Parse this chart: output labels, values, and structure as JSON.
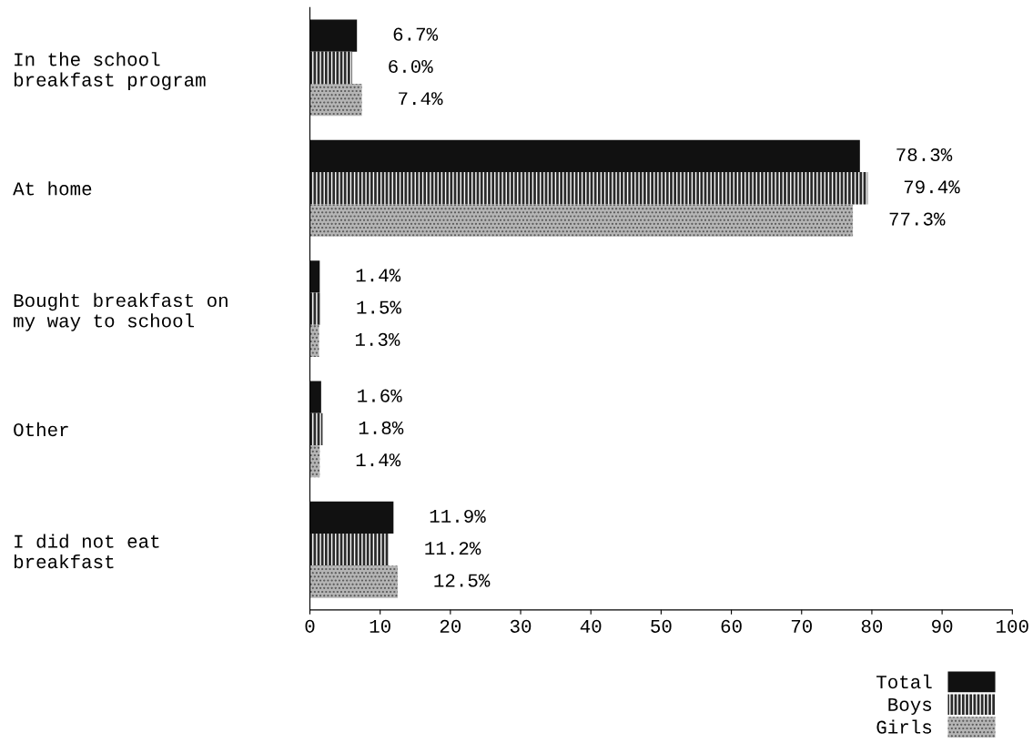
{
  "chart_data": {
    "type": "bar",
    "orientation": "horizontal",
    "categories": [
      "In the school\nbreakfast program",
      "At home",
      "Bought breakfast on\nmy way to school",
      "Other",
      "I did not eat\nbreakfast"
    ],
    "series": [
      {
        "name": "Total",
        "color": "#111111",
        "values": [
          6.7,
          78.3,
          1.4,
          1.6,
          11.9
        ],
        "value_labels": [
          "6.7%",
          "78.3%",
          "1.4%",
          "1.6%",
          "11.9%"
        ]
      },
      {
        "name": "Boys",
        "color": "#2a2a2a",
        "values": [
          6.0,
          79.4,
          1.5,
          1.8,
          11.2
        ],
        "value_labels": [
          "6.0%",
          "79.4%",
          "1.5%",
          "1.8%",
          "11.2%"
        ]
      },
      {
        "name": "Girls",
        "color": "#b5b5b5",
        "values": [
          7.4,
          77.3,
          1.3,
          1.4,
          12.5
        ],
        "value_labels": [
          "7.4%",
          "77.3%",
          "1.3%",
          "1.4%",
          "12.5%"
        ]
      }
    ],
    "xlim": [
      0,
      100
    ],
    "xticks": [
      0,
      10,
      20,
      30,
      40,
      50,
      60,
      70,
      80,
      90,
      100
    ],
    "grid": false,
    "legend": "bottom right"
  }
}
